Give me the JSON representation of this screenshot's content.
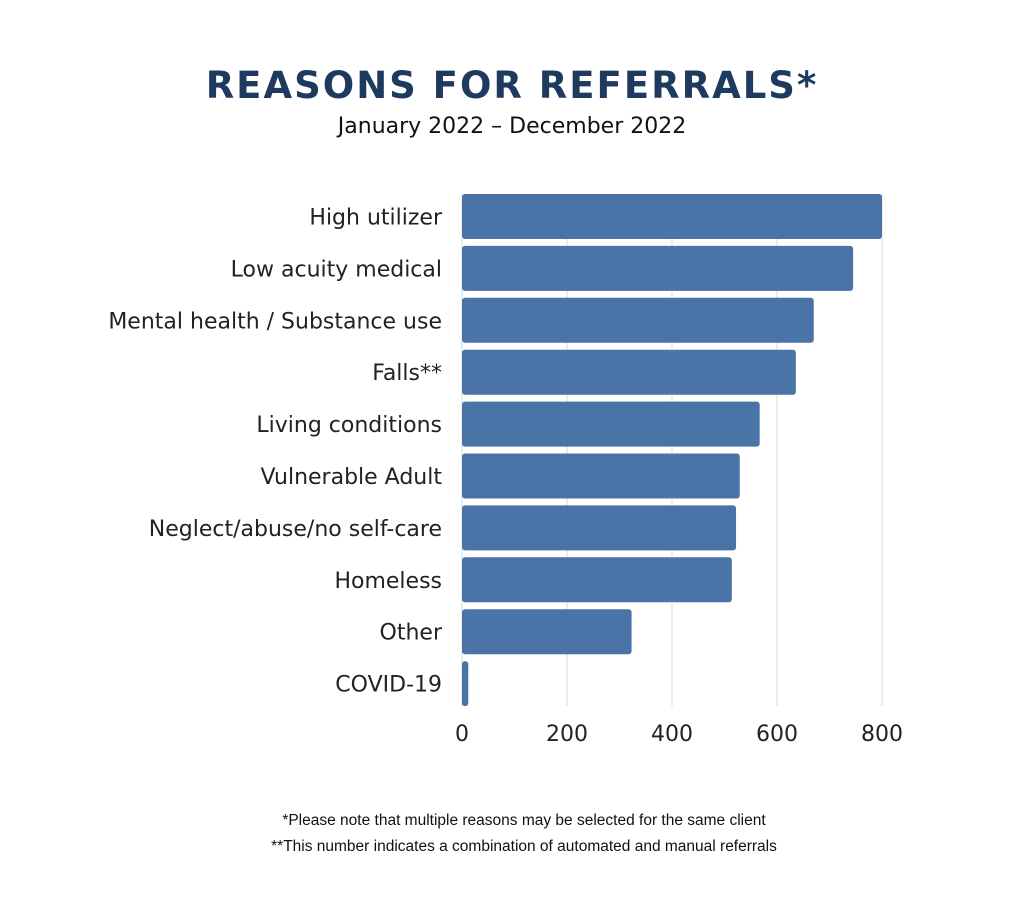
{
  "title": "REASONS FOR REFERRALS*",
  "subtitle": "January 2022 – December 2022",
  "notes": [
    "*Please note that multiple reasons may be selected for the same client",
    "**This number indicates a combination of automated and manual referrals"
  ],
  "colors": {
    "bar": "#4a74a8",
    "title": "#1f3a5f",
    "grid": "#d9d9d9"
  },
  "chart_data": {
    "type": "bar",
    "orientation": "horizontal",
    "title": "REASONS FOR REFERRALS*",
    "subtitle": "January 2022 – December 2022",
    "categories": [
      "High utilizer",
      "Low acuity medical",
      "Mental health / Substance use",
      "Falls**",
      "Living conditions",
      "Vulnerable Adult",
      "Neglect/abuse/no self-care",
      "Homeless",
      "Other",
      "COVID-19"
    ],
    "values": [
      800,
      745,
      670,
      636,
      567,
      529,
      522,
      514,
      323,
      12
    ],
    "xlim": [
      0,
      800
    ],
    "xticks": [
      0,
      200,
      400,
      600,
      800
    ],
    "xlabel": "",
    "ylabel": "",
    "grid": "vertical",
    "legend": "none"
  }
}
